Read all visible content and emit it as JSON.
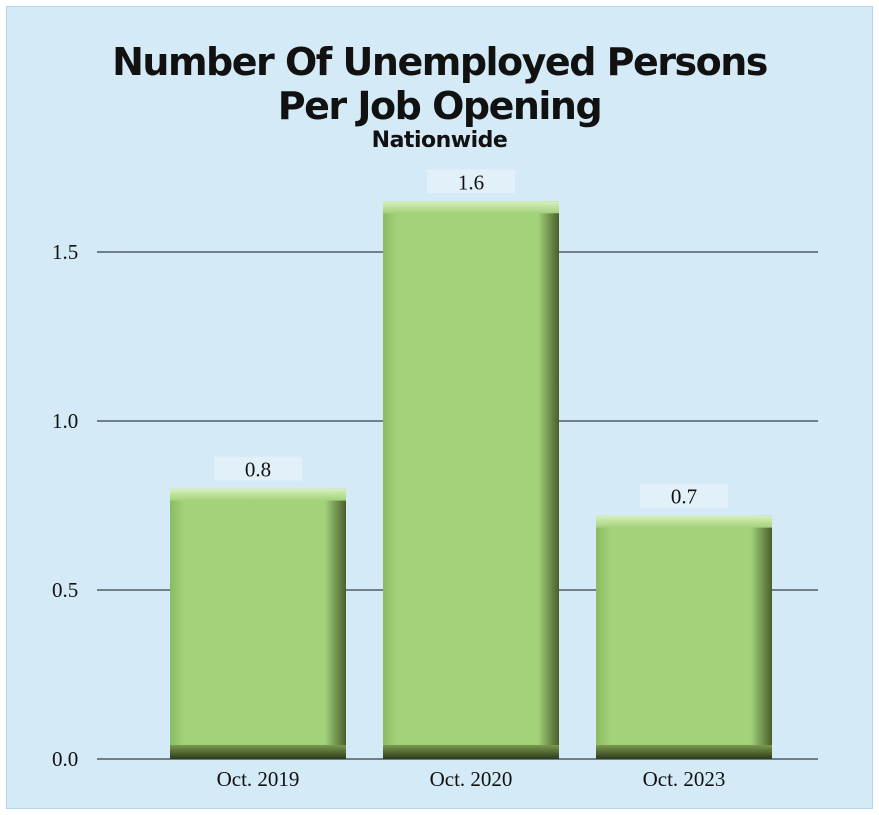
{
  "chart_data": {
    "type": "bar",
    "title": "Number Of Unemployed Persons",
    "title_line2": "Per Job Opening",
    "subtitle": "Nationwide",
    "categories": [
      "Oct. 2019",
      "Oct. 2020",
      "Oct. 2023"
    ],
    "values": [
      0.8,
      1.65,
      0.72
    ],
    "value_labels": [
      "0.8",
      "1.6",
      "0.7"
    ],
    "ylim": [
      0,
      1.5
    ],
    "yticks": [
      "0.0",
      "0.5",
      "1.0",
      "1.5"
    ],
    "grid": true,
    "bar_color": "#a2d279",
    "bar_shadow_color": "#3a4a24",
    "background_color": "#d4eaf6"
  }
}
